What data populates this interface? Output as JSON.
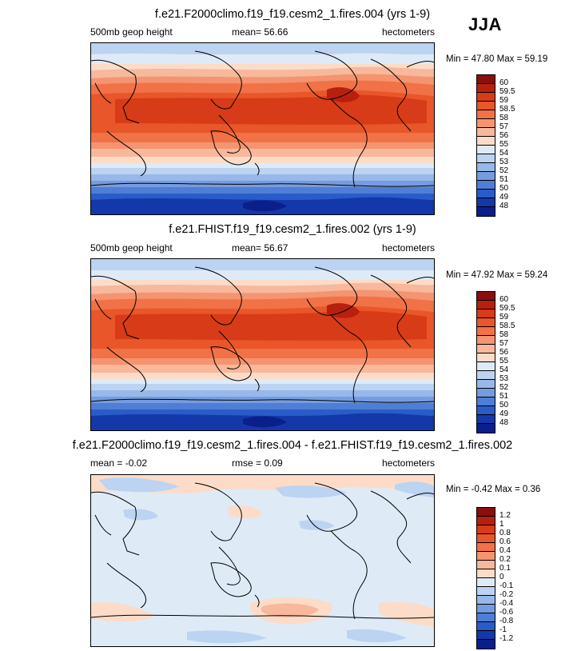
{
  "season": "JJA",
  "panels": [
    {
      "title": "f.e21.F2000climo.f19_f19.cesm2_1.fires.004 (yrs 1-9)",
      "left_label": "500mb geop height",
      "center_label": "mean=  56.66",
      "right_label": "hectometers",
      "minmax": "Min = 47.80 Max = 59.19",
      "colorbar": {
        "labels": [
          "60",
          "59.5",
          "59",
          "58.5",
          "58",
          "57",
          "56",
          "55",
          "54",
          "53",
          "52",
          "51",
          "50",
          "49",
          "48"
        ],
        "colors": [
          "#8b0e0e",
          "#b8200e",
          "#d83b17",
          "#e8562a",
          "#f07246",
          "#f49470",
          "#f8b89b",
          "#fcdcc8",
          "#deebf7",
          "#bcd3f1",
          "#98b8ea",
          "#759ce0",
          "#4f7ed6",
          "#2a5cc9",
          "#1438aa",
          "#0b1f8a"
        ]
      }
    },
    {
      "title": "f.e21.FHIST.f19_f19.cesm2_1.fires.002 (yrs 1-9)",
      "left_label": "500mb geop height",
      "center_label": "mean=  56.67",
      "right_label": "hectometers",
      "minmax": "Min = 47.92 Max = 59.24",
      "colorbar": {
        "labels": [
          "60",
          "59.5",
          "59",
          "58.5",
          "58",
          "57",
          "56",
          "55",
          "54",
          "53",
          "52",
          "51",
          "50",
          "49",
          "48"
        ],
        "colors": [
          "#8b0e0e",
          "#b8200e",
          "#d83b17",
          "#e8562a",
          "#f07246",
          "#f49470",
          "#f8b89b",
          "#fcdcc8",
          "#deebf7",
          "#bcd3f1",
          "#98b8ea",
          "#759ce0",
          "#4f7ed6",
          "#2a5cc9",
          "#1438aa",
          "#0b1f8a"
        ]
      }
    },
    {
      "title": "f.e21.F2000climo.f19_f19.cesm2_1.fires.004 - f.e21.FHIST.f19_f19.cesm2_1.fires.002",
      "left_label": "mean =  -0.02",
      "center_label": "rmse =   0.09",
      "right_label": "hectometers",
      "minmax": "Min =  -0.42 Max =   0.36",
      "colorbar": {
        "labels": [
          "1.2",
          "1",
          "0.8",
          "0.6",
          "0.4",
          "0.2",
          "0.1",
          "0",
          "-0.1",
          "-0.2",
          "-0.4",
          "-0.6",
          "-0.8",
          "-1",
          "-1.2"
        ],
        "colors": [
          "#8b0e0e",
          "#b8200e",
          "#d83b17",
          "#e8562a",
          "#f07246",
          "#f49470",
          "#f8b89b",
          "#fcdcc8",
          "#deebf7",
          "#bcd3f1",
          "#98b8ea",
          "#759ce0",
          "#4f7ed6",
          "#2a5cc9",
          "#1438aa",
          "#0b1f8a"
        ]
      }
    }
  ]
}
